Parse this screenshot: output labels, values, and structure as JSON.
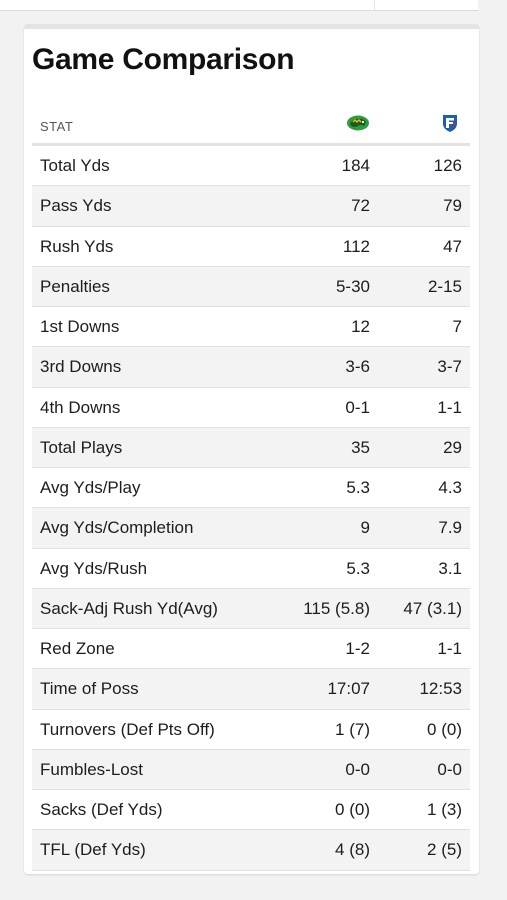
{
  "title": "Game Comparison",
  "header": {
    "stat_label": "STAT",
    "home_logo_icon": "bison-logo-icon",
    "away_logo_icon": "shield-logo-icon"
  },
  "colors": {
    "home_logo": "#2e9b3c",
    "away_logo": "#1f5fa8"
  },
  "rows": [
    {
      "label": "Total Yds",
      "home": "184",
      "away": "126"
    },
    {
      "label": "Pass Yds",
      "home": "72",
      "away": "79"
    },
    {
      "label": "Rush Yds",
      "home": "112",
      "away": "47"
    },
    {
      "label": "Penalties",
      "home": "5-30",
      "away": "2-15"
    },
    {
      "label": "1st Downs",
      "home": "12",
      "away": "7"
    },
    {
      "label": "3rd Downs",
      "home": "3-6",
      "away": "3-7"
    },
    {
      "label": "4th Downs",
      "home": "0-1",
      "away": "1-1"
    },
    {
      "label": "Total Plays",
      "home": "35",
      "away": "29"
    },
    {
      "label": "Avg Yds/Play",
      "home": "5.3",
      "away": "4.3"
    },
    {
      "label": "Avg Yds/Completion",
      "home": "9",
      "away": "7.9"
    },
    {
      "label": "Avg Yds/Rush",
      "home": "5.3",
      "away": "3.1"
    },
    {
      "label": "Sack-Adj Rush Yd(Avg)",
      "home": "115 (5.8)",
      "away": "47 (3.1)"
    },
    {
      "label": "Red Zone",
      "home": "1-2",
      "away": "1-1"
    },
    {
      "label": "Time of Poss",
      "home": "17:07",
      "away": "12:53"
    },
    {
      "label": "Turnovers (Def Pts Off)",
      "home": "1 (7)",
      "away": "0 (0)"
    },
    {
      "label": "Fumbles-Lost",
      "home": "0-0",
      "away": "0-0"
    },
    {
      "label": "Sacks (Def Yds)",
      "home": "0 (0)",
      "away": "1 (3)"
    },
    {
      "label": "TFL (Def Yds)",
      "home": "4 (8)",
      "away": "2 (5)"
    }
  ]
}
